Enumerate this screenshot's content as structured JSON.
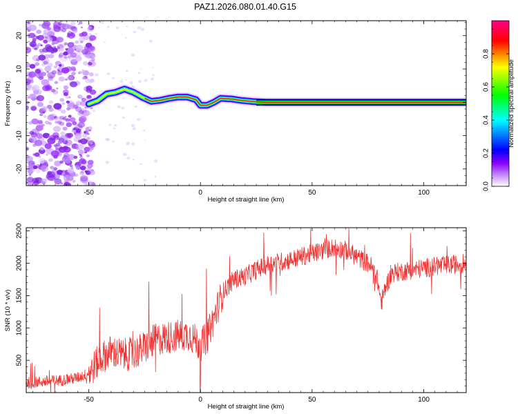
{
  "title": "PAZ1.2026.080.01.40.G15",
  "chart_data": [
    {
      "type": "heatmap",
      "title": "PAZ1.2026.080.01.40.G15",
      "xlabel": "Height of straight line (km)",
      "ylabel": "Frequency (Hz)",
      "xlim": [
        -78,
        119
      ],
      "ylim": [
        -25,
        24.5
      ],
      "xticks": [
        -50,
        0,
        50,
        100
      ],
      "yticks": [
        -20,
        -10,
        0,
        10,
        20
      ],
      "xtick_labels": [
        "-50",
        "0",
        "50",
        "100"
      ],
      "ytick_labels": [
        "-20",
        "-10",
        "0",
        "10",
        "20"
      ],
      "ridge": [
        {
          "x": -50,
          "f": -0.5
        },
        {
          "x": -46,
          "f": 0.5
        },
        {
          "x": -42,
          "f": 2.5
        },
        {
          "x": -38,
          "f": 3.0
        },
        {
          "x": -34,
          "f": 4.0
        },
        {
          "x": -30,
          "f": 3.0
        },
        {
          "x": -26,
          "f": 1.5
        },
        {
          "x": -22,
          "f": 0.3
        },
        {
          "x": -18,
          "f": 0.6
        },
        {
          "x": -14,
          "f": 1.2
        },
        {
          "x": -10,
          "f": 1.6
        },
        {
          "x": -6,
          "f": 1.6
        },
        {
          "x": -2,
          "f": 0.8
        },
        {
          "x": 0,
          "f": -0.9
        },
        {
          "x": 3,
          "f": -0.9
        },
        {
          "x": 6,
          "f": 0.0
        },
        {
          "x": 9,
          "f": 1.2
        },
        {
          "x": 14,
          "f": 1.0
        },
        {
          "x": 18,
          "f": 0.6
        },
        {
          "x": 24,
          "f": 0.2
        },
        {
          "x": 30,
          "f": 0.0
        },
        {
          "x": 119,
          "f": 0.0
        }
      ],
      "noise_region_km": [
        -78,
        -50
      ]
    },
    {
      "type": "line",
      "xlabel": "Height of straight line (km)",
      "ylabel": "SNR (10 * v/v)",
      "xlim": [
        -78,
        119
      ],
      "ylim": [
        0,
        2550
      ],
      "xticks": [
        -50,
        0,
        50,
        100
      ],
      "yticks": [
        500,
        1000,
        1500,
        2000,
        2500
      ],
      "xtick_labels": [
        "-50",
        "0",
        "50",
        "100"
      ],
      "ytick_labels": [
        "500",
        "1000",
        "1500",
        "2000",
        "2500"
      ],
      "series": [
        {
          "name": "SNR",
          "color": "#ee3333",
          "trend": [
            {
              "x": -78,
              "snr": 150
            },
            {
              "x": -60,
              "snr": 200
            },
            {
              "x": -55,
              "snr": 230
            },
            {
              "x": -50,
              "snr": 300
            },
            {
              "x": -45,
              "snr": 520
            },
            {
              "x": -40,
              "snr": 640
            },
            {
              "x": -35,
              "snr": 580
            },
            {
              "x": -30,
              "snr": 600
            },
            {
              "x": -25,
              "snr": 700
            },
            {
              "x": -20,
              "snr": 820
            },
            {
              "x": -15,
              "snr": 850
            },
            {
              "x": -10,
              "snr": 880
            },
            {
              "x": -5,
              "snr": 900
            },
            {
              "x": 0,
              "snr": 730
            },
            {
              "x": 3,
              "snr": 860
            },
            {
              "x": 6,
              "snr": 1150
            },
            {
              "x": 10,
              "snr": 1550
            },
            {
              "x": 15,
              "snr": 1750
            },
            {
              "x": 20,
              "snr": 1800
            },
            {
              "x": 25,
              "snr": 1900
            },
            {
              "x": 30,
              "snr": 1980
            },
            {
              "x": 40,
              "snr": 2050
            },
            {
              "x": 50,
              "snr": 2150
            },
            {
              "x": 55,
              "snr": 2200
            },
            {
              "x": 60,
              "snr": 2250
            },
            {
              "x": 65,
              "snr": 2200
            },
            {
              "x": 70,
              "snr": 2100
            },
            {
              "x": 76,
              "snr": 1980
            },
            {
              "x": 79,
              "snr": 1800
            },
            {
              "x": 81,
              "snr": 1380
            },
            {
              "x": 83,
              "snr": 1650
            },
            {
              "x": 86,
              "snr": 1850
            },
            {
              "x": 95,
              "snr": 1900
            },
            {
              "x": 105,
              "snr": 1950
            },
            {
              "x": 119,
              "snr": 2000
            }
          ]
        }
      ]
    }
  ],
  "colorbar": {
    "label": "Normalized spectral amplitude",
    "range": [
      0,
      1
    ],
    "ticks": [
      0.0,
      0.2,
      0.4,
      0.6,
      0.8
    ],
    "tick_labels": [
      "0.0",
      "0.2",
      "0.4",
      "0.6",
      "0.8"
    ],
    "colors": [
      "#ffffff",
      "#8800ff",
      "#0000ff",
      "#00ffff",
      "#00ff00",
      "#ffff00",
      "#ff0000",
      "#ff0088"
    ]
  }
}
